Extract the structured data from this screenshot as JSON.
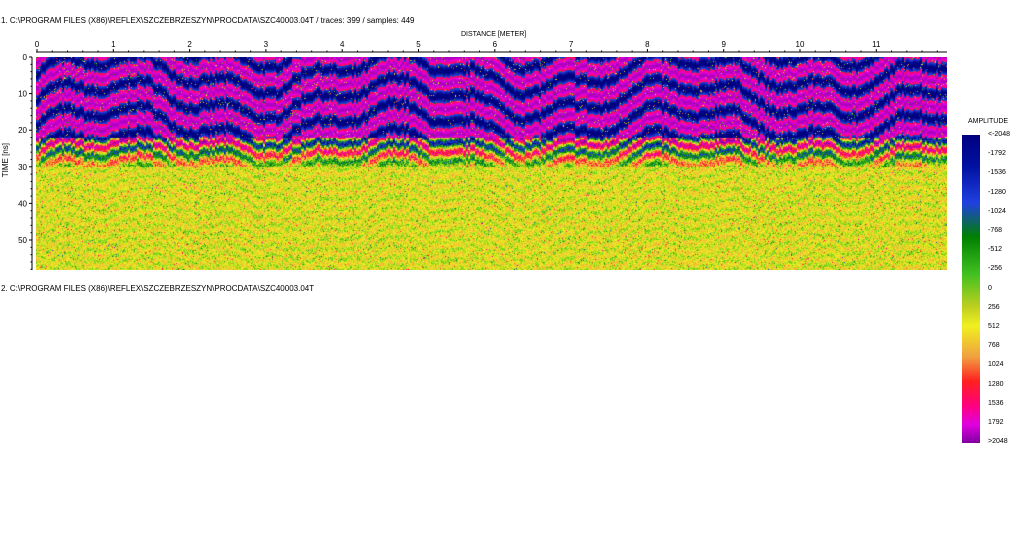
{
  "panel1_title": "1. C:\\PROGRAM FILES (X86)\\REFLEX\\SZCZEBRZESZYN\\PROCDATA\\SZC40003.04T  / traces: 399 / samples: 449",
  "panel2_title": "2. C:\\PROGRAM FILES (X86)\\REFLEX\\SZCZEBRZESZYN\\PROCDATA\\SZC40003.04T",
  "chart_data": {
    "type": "heatmap",
    "xlabel": "DISTANCE [METER]",
    "ylabel": "TIME [ns]",
    "xlim": [
      0,
      11.9
    ],
    "ylim": [
      0,
      58
    ],
    "x_ticks": [
      "0",
      "1",
      "2",
      "3",
      "4",
      "5",
      "6",
      "7",
      "8",
      "9",
      "10",
      "11"
    ],
    "y_ticks": [
      "0",
      "10",
      "20",
      "30",
      "40",
      "50"
    ],
    "traces": 399,
    "samples": 449,
    "colorbar": {
      "title": "AMPLITUDE",
      "labels": [
        "<-2048",
        "-1792",
        "-1536",
        "-1280",
        "-1024",
        "-768",
        "-512",
        "-256",
        "0",
        "256",
        "512",
        "768",
        "1024",
        "1280",
        "1536",
        "1792",
        ">2048"
      ],
      "colors": [
        "#000080",
        "#2040e0",
        "#008000",
        "#40c020",
        "#f0f020",
        "#f0a040",
        "#ff2020",
        "#ff0080",
        "#e000e0",
        "#8000a0"
      ]
    }
  }
}
